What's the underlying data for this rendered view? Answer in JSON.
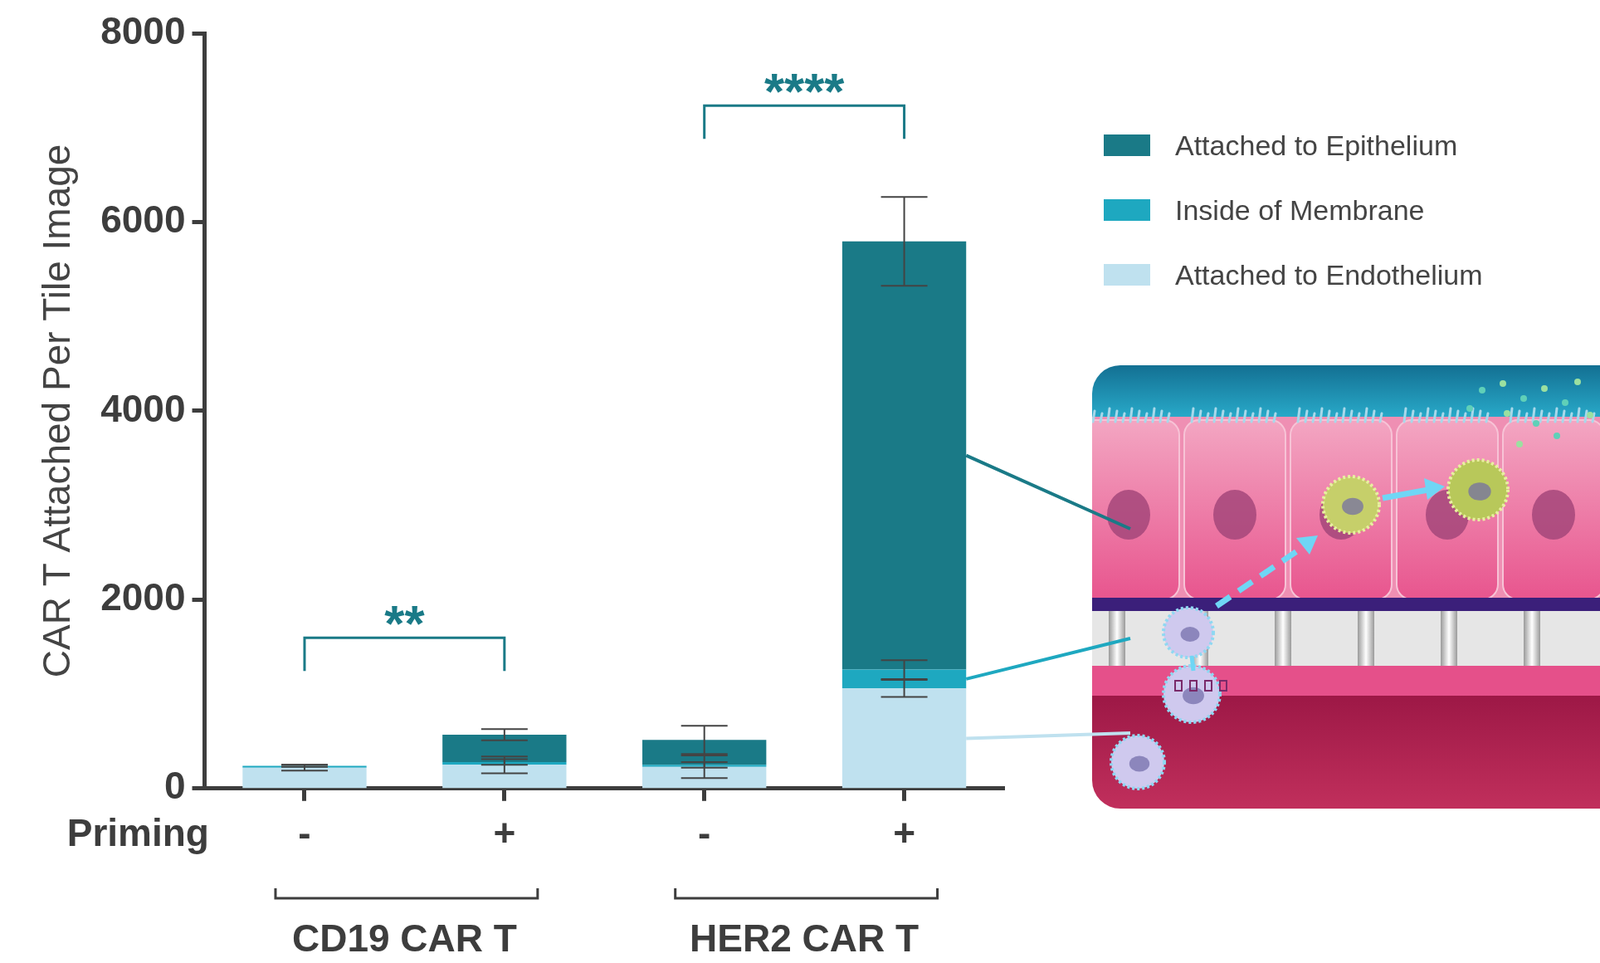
{
  "chart_data": {
    "type": "bar",
    "stacked": true,
    "grid": false,
    "legend": "right",
    "y_label": "CAR T Attached Per Tile Image",
    "x_label": "Priming",
    "categories": [
      "-",
      "+",
      "-",
      "+"
    ],
    "groups": [
      {
        "name": "CD19 CAR T",
        "significance": "**"
      },
      {
        "name": "HER2 CAR T",
        "significance": "****"
      }
    ],
    "ylim": [
      0,
      8000
    ],
    "yticks": [
      0,
      2000,
      4000,
      6000,
      8000
    ],
    "series": [
      {
        "name": "Attached to Endothelium",
        "color": "#bfe1ef",
        "values": [
          220,
          250,
          230,
          1060
        ],
        "errors": [
          30,
          90,
          120,
          90
        ]
      },
      {
        "name": "Inside of Membrane",
        "color": "#1ea8c0",
        "values": [
          20,
          30,
          20,
          200
        ],
        "errors": [
          10,
          30,
          30,
          100
        ]
      },
      {
        "name": "Attached to Epithelium",
        "color": "#1a7a87",
        "values": [
          0,
          290,
          265,
          4535
        ],
        "errors": [
          null,
          60,
          150,
          470
        ]
      }
    ]
  }
}
